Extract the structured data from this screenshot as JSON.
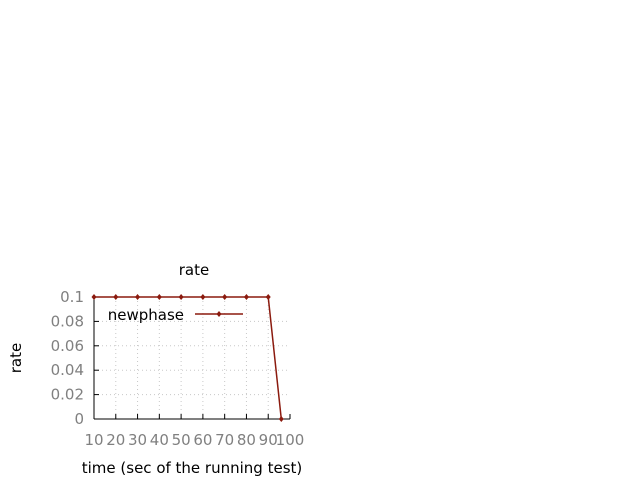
{
  "chart_data": {
    "type": "line",
    "title": "rate",
    "xlabel": "time (sec of the running test)",
    "ylabel": "rate",
    "xlim": [
      10,
      100
    ],
    "ylim": [
      0,
      0.1
    ],
    "x_ticks": [
      10,
      20,
      30,
      40,
      50,
      60,
      70,
      80,
      90,
      100
    ],
    "y_ticks": [
      0,
      0.02,
      0.04,
      0.06,
      0.08,
      0.1
    ],
    "x_tick_labels": [
      "10",
      "20",
      "30",
      "40",
      "50",
      "60",
      "70",
      "80",
      "90",
      "100"
    ],
    "y_tick_labels": [
      "0",
      "0.02",
      "0.04",
      "0.06",
      "0.08",
      "0.1"
    ],
    "grid": true,
    "legend_position": "top-left",
    "colors": {
      "series": "#8b1a0e",
      "tick_text": "#808080",
      "grid": "#c8c8c8"
    },
    "series": [
      {
        "name": "newphase",
        "x": [
          10,
          20,
          30,
          40,
          50,
          60,
          70,
          80,
          90,
          96
        ],
        "y": [
          0.1,
          0.1,
          0.1,
          0.1,
          0.1,
          0.1,
          0.1,
          0.1,
          0.1,
          0
        ]
      }
    ]
  }
}
